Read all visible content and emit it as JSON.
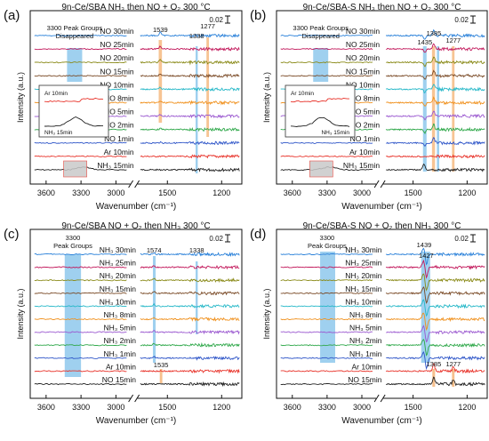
{
  "chart_data": [
    {
      "panel_label": "(a)",
      "title": "9n-Ce/SBA",
      "condition": "NH₃ then NO + O₂   300 °C",
      "type": "line",
      "xlabel": "Wavenumber (cm⁻¹)",
      "ylabel": "Intensity (a.u.)",
      "scale_label": "0.02",
      "x_ticks": [
        "3600",
        "3300",
        "3000",
        "1500",
        "1200"
      ],
      "series": [
        {
          "name": "NH₃ 15min",
          "color": "#222222"
        },
        {
          "name": "Ar 10min",
          "color": "#e8332a"
        },
        {
          "name": "NO 1min",
          "color": "#2e55c8"
        },
        {
          "name": "NO 2min",
          "color": "#2fa84a"
        },
        {
          "name": "NO 5min",
          "color": "#9b59d0"
        },
        {
          "name": "NO 8min",
          "color": "#f0911e"
        },
        {
          "name": "NO 10min",
          "color": "#26b8c8"
        },
        {
          "name": "NO 15min",
          "color": "#7a4a26"
        },
        {
          "name": "NO 20min",
          "color": "#8a8a18"
        },
        {
          "name": "NO 25min",
          "color": "#c2185b"
        },
        {
          "name": "NO 30min",
          "color": "#2980d9"
        }
      ],
      "annotations": [
        "3300 Peak Groups",
        "Disappeared"
      ],
      "peaks": [
        "1539",
        "1338",
        "1277"
      ],
      "inset": {
        "labels": [
          "Ar 10min",
          "NH₃ 15min"
        ]
      }
    },
    {
      "panel_label": "(b)",
      "title": "9n-Ce/SBA-S",
      "condition": "NH₃ then NO + O₂   300 °C",
      "type": "line",
      "xlabel": "Wavenumber (cm⁻¹)",
      "ylabel": "Intensity (a.u.)",
      "scale_label": "0.02",
      "x_ticks": [
        "3600",
        "3300",
        "3000",
        "1500",
        "1200"
      ],
      "series": [
        {
          "name": "NH₃ 15min",
          "color": "#222222"
        },
        {
          "name": "Ar 10min",
          "color": "#e8332a"
        },
        {
          "name": "NO 1min",
          "color": "#2e55c8"
        },
        {
          "name": "NO 2min",
          "color": "#2fa84a"
        },
        {
          "name": "NO 5min",
          "color": "#9b59d0"
        },
        {
          "name": "NO 8min",
          "color": "#f0911e"
        },
        {
          "name": "NO 10min",
          "color": "#26b8c8"
        },
        {
          "name": "NO 15min",
          "color": "#7a4a26"
        },
        {
          "name": "NO 20min",
          "color": "#8a8a18"
        },
        {
          "name": "NO 25min",
          "color": "#c2185b"
        },
        {
          "name": "NO 30min",
          "color": "#2980d9"
        }
      ],
      "annotations": [
        "3300 Peak Groups",
        "Disappeared"
      ],
      "peaks": [
        "1435",
        "1385",
        "1277"
      ],
      "inset": {
        "labels": [
          "Ar 10min",
          "NH₃ 15min"
        ]
      }
    },
    {
      "panel_label": "(c)",
      "title": "9n-Ce/SBA",
      "condition": "NO + O₂ then NH₃   300 °C",
      "type": "line",
      "xlabel": "Wavenumber (cm⁻¹)",
      "ylabel": "Intensity (a.u.)",
      "scale_label": "0.02",
      "x_ticks": [
        "3600",
        "3300",
        "3000",
        "1500",
        "1200"
      ],
      "series": [
        {
          "name": "NO 15min",
          "color": "#222222"
        },
        {
          "name": "Ar 10min",
          "color": "#e8332a"
        },
        {
          "name": "NH₃ 1min",
          "color": "#2e55c8"
        },
        {
          "name": "NH₃ 2min",
          "color": "#2fa84a"
        },
        {
          "name": "NH₃ 5min",
          "color": "#9b59d0"
        },
        {
          "name": "NH₃ 8min",
          "color": "#f0911e"
        },
        {
          "name": "NH₃ 10min",
          "color": "#26b8c8"
        },
        {
          "name": "NH₃ 15min",
          "color": "#7a4a26"
        },
        {
          "name": "NH₃ 20min",
          "color": "#8a8a18"
        },
        {
          "name": "NH₃ 25min",
          "color": "#c2185b"
        },
        {
          "name": "NH₃ 30min",
          "color": "#2980d9"
        }
      ],
      "annotations": [
        "3300",
        "Peak Groups"
      ],
      "peaks": [
        "1574",
        "1338",
        "1535"
      ]
    },
    {
      "panel_label": "(d)",
      "title": "9n-Ce/SBA-S",
      "condition": "NO + O₂ then NH₃   300 °C",
      "type": "line",
      "xlabel": "Wavenumber (cm⁻¹)",
      "ylabel": "Intensity (a.u.)",
      "scale_label": "0.02",
      "x_ticks": [
        "3600",
        "3300",
        "3000",
        "1500",
        "1200"
      ],
      "series": [
        {
          "name": "NO 15min",
          "color": "#222222"
        },
        {
          "name": "Ar 10min",
          "color": "#e8332a"
        },
        {
          "name": "NH₃ 1min",
          "color": "#2e55c8"
        },
        {
          "name": "NH₃ 2min",
          "color": "#2fa84a"
        },
        {
          "name": "NH₃ 5min",
          "color": "#9b59d0"
        },
        {
          "name": "NH₃ 8min",
          "color": "#f0911e"
        },
        {
          "name": "NH₃ 10min",
          "color": "#26b8c8"
        },
        {
          "name": "NH₃ 15min",
          "color": "#7a4a26"
        },
        {
          "name": "NH₃ 20min",
          "color": "#8a8a18"
        },
        {
          "name": "NH₃ 25min",
          "color": "#c2185b"
        },
        {
          "name": "NH₃ 30min",
          "color": "#2980d9"
        }
      ],
      "annotations": [
        "3300",
        "Peak Groups"
      ],
      "peaks": [
        "1439",
        "1427",
        "1385",
        "1277"
      ]
    }
  ]
}
